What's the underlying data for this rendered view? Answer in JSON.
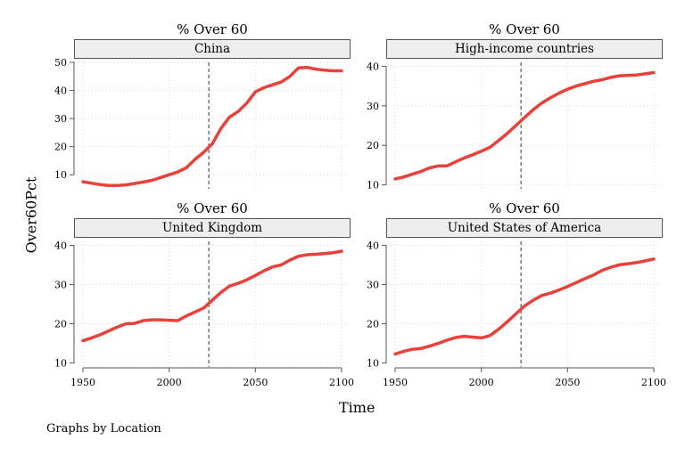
{
  "figure": {
    "ylabel": "Over60Pct",
    "xlabel": "Time",
    "note": "Graphs by Location"
  },
  "chart_data": {
    "type": "line",
    "x_range": [
      1950,
      2100
    ],
    "x_ticks": [
      1950,
      2000,
      2050,
      2100
    ],
    "reference_line_x": 2023,
    "grid": true,
    "line_color": "#e8403a",
    "panels": [
      {
        "title": "% Over 60",
        "strip": "China",
        "ylim": [
          5,
          50
        ],
        "y_ticks": [
          10,
          20,
          30,
          40,
          50
        ],
        "x": [
          1950,
          1955,
          1960,
          1965,
          1970,
          1975,
          1980,
          1985,
          1990,
          1995,
          2000,
          2005,
          2010,
          2015,
          2020,
          2025,
          2030,
          2035,
          2040,
          2045,
          2050,
          2055,
          2060,
          2065,
          2070,
          2075,
          2080,
          2085,
          2090,
          2095,
          2100
        ],
        "values": [
          7.5,
          7.0,
          6.5,
          6.2,
          6.2,
          6.4,
          6.9,
          7.4,
          8.0,
          9.0,
          10.0,
          11.0,
          12.5,
          15.5,
          18.0,
          21.0,
          26.5,
          30.5,
          32.5,
          35.5,
          39.5,
          41.0,
          42.0,
          43.0,
          45.0,
          48.0,
          48.2,
          47.6,
          47.2,
          47.0,
          47.0
        ]
      },
      {
        "title": "% Over 60",
        "strip": "High-income countries",
        "ylim": [
          9,
          41
        ],
        "y_ticks": [
          10,
          20,
          30,
          40
        ],
        "x": [
          1950,
          1955,
          1960,
          1965,
          1970,
          1975,
          1980,
          1985,
          1990,
          1995,
          2000,
          2005,
          2010,
          2015,
          2020,
          2025,
          2030,
          2035,
          2040,
          2045,
          2050,
          2055,
          2060,
          2065,
          2070,
          2075,
          2080,
          2085,
          2090,
          2095,
          2100
        ],
        "values": [
          11.5,
          12.0,
          12.7,
          13.4,
          14.3,
          14.8,
          14.8,
          15.8,
          16.8,
          17.6,
          18.5,
          19.5,
          21.2,
          23.0,
          25.0,
          27.0,
          29.0,
          30.7,
          32.0,
          33.2,
          34.2,
          35.0,
          35.6,
          36.2,
          36.6,
          37.2,
          37.6,
          37.7,
          37.8,
          38.1,
          38.4
        ]
      },
      {
        "title": "% Over 60",
        "strip": "United Kingdom",
        "ylim": [
          9,
          41
        ],
        "y_ticks": [
          10,
          20,
          30,
          40
        ],
        "x": [
          1950,
          1955,
          1960,
          1965,
          1970,
          1975,
          1980,
          1985,
          1990,
          1995,
          2000,
          2005,
          2010,
          2015,
          2020,
          2025,
          2030,
          2035,
          2040,
          2045,
          2050,
          2055,
          2060,
          2065,
          2070,
          2075,
          2080,
          2085,
          2090,
          2095,
          2100
        ],
        "values": [
          15.7,
          16.4,
          17.2,
          18.2,
          19.2,
          20.0,
          20.1,
          20.8,
          21.0,
          21.0,
          20.9,
          20.8,
          22.0,
          23.0,
          24.0,
          26.0,
          28.0,
          29.6,
          30.3,
          31.2,
          32.3,
          33.5,
          34.5,
          35.0,
          36.2,
          37.2,
          37.6,
          37.7,
          37.9,
          38.1,
          38.5
        ]
      },
      {
        "title": "% Over 60",
        "strip": "United States of America",
        "ylim": [
          9,
          41
        ],
        "y_ticks": [
          10,
          20,
          30,
          40
        ],
        "x": [
          1950,
          1955,
          1960,
          1965,
          1970,
          1975,
          1980,
          1985,
          1990,
          1995,
          2000,
          2005,
          2010,
          2015,
          2020,
          2025,
          2030,
          2035,
          2040,
          2045,
          2050,
          2055,
          2060,
          2065,
          2070,
          2075,
          2080,
          2085,
          2090,
          2095,
          2100
        ],
        "values": [
          12.3,
          13.0,
          13.5,
          13.7,
          14.3,
          15.0,
          15.8,
          16.5,
          16.8,
          16.6,
          16.4,
          17.0,
          18.6,
          20.5,
          22.5,
          24.5,
          26.0,
          27.2,
          27.8,
          28.6,
          29.5,
          30.5,
          31.5,
          32.4,
          33.6,
          34.4,
          35.0,
          35.3,
          35.6,
          36.0,
          36.5
        ]
      }
    ]
  }
}
